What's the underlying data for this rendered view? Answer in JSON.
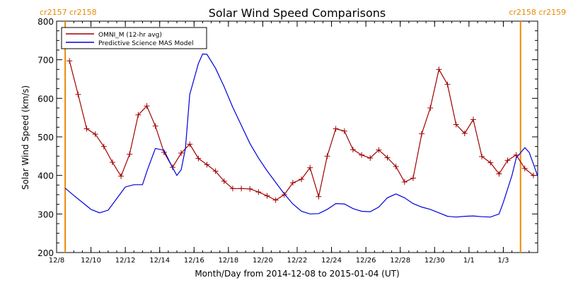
{
  "chart_data": {
    "type": "line",
    "title": "Solar Wind Speed Comparisons",
    "xlabel": "Month/Day from 2014-12-08 to 2015-01-04 (UT)",
    "ylabel": "Solar Wind Speed (km/s)",
    "xlim": [
      "2014-12-08",
      "2015-01-04"
    ],
    "ylim": [
      200,
      800
    ],
    "yticks": [
      200,
      300,
      400,
      500,
      600,
      700,
      800
    ],
    "xticks": [
      {
        "date": "2014-12-08",
        "label": "12/8"
      },
      {
        "date": "2014-12-10",
        "label": "12/10"
      },
      {
        "date": "2014-12-12",
        "label": "12/12"
      },
      {
        "date": "2014-12-14",
        "label": "12/14"
      },
      {
        "date": "2014-12-16",
        "label": "12/16"
      },
      {
        "date": "2014-12-18",
        "label": "12/18"
      },
      {
        "date": "2014-12-20",
        "label": "12/20"
      },
      {
        "date": "2014-12-22",
        "label": "12/22"
      },
      {
        "date": "2014-12-24",
        "label": "12/24"
      },
      {
        "date": "2014-12-26",
        "label": "12/26"
      },
      {
        "date": "2014-12-28",
        "label": "12/28"
      },
      {
        "date": "2014-12-30",
        "label": "12/30"
      },
      {
        "date": "2015-01-01",
        "label": "1/1"
      },
      {
        "date": "2015-01-03",
        "label": "1/3"
      }
    ],
    "legend_position": "top-left",
    "carrington_markers": [
      {
        "date": "2014-12-08 12:00",
        "labels": [
          "cr2157",
          "cr2158"
        ],
        "color": "#e88a00"
      },
      {
        "date": "2015-01-04 00:00",
        "labels": [
          "cr2158",
          "cr2159"
        ],
        "color": "#e88a00"
      }
    ],
    "series": [
      {
        "name": "OMNI_M (12-hr avg)",
        "color": "#a00000",
        "marker": "plus",
        "points": [
          [
            "2014-12-08 18:00",
            697
          ],
          [
            "2014-12-09 06:00",
            610
          ],
          [
            "2014-12-09 18:00",
            521
          ],
          [
            "2014-12-10 06:00",
            507
          ],
          [
            "2014-12-10 18:00",
            475
          ],
          [
            "2014-12-11 06:00",
            434
          ],
          [
            "2014-12-11 18:00",
            398
          ],
          [
            "2014-12-12 06:00",
            455
          ],
          [
            "2014-12-12 18:00",
            557
          ],
          [
            "2014-12-13 06:00",
            580
          ],
          [
            "2014-12-13 18:00",
            528
          ],
          [
            "2014-12-14 06:00",
            460
          ],
          [
            "2014-12-14 18:00",
            421
          ],
          [
            "2014-12-15 06:00",
            458
          ],
          [
            "2014-12-15 18:00",
            481
          ],
          [
            "2014-12-16 06:00",
            444
          ],
          [
            "2014-12-16 18:00",
            428
          ],
          [
            "2014-12-17 06:00",
            411
          ],
          [
            "2014-12-17 18:00",
            385
          ],
          [
            "2014-12-18 06:00",
            366
          ],
          [
            "2014-12-18 18:00",
            366
          ],
          [
            "2014-12-19 06:00",
            365
          ],
          [
            "2014-12-19 18:00",
            357
          ],
          [
            "2014-12-20 06:00",
            347
          ],
          [
            "2014-12-20 18:00",
            336
          ],
          [
            "2014-12-21 06:00",
            350
          ],
          [
            "2014-12-21 18:00",
            381
          ],
          [
            "2014-12-22 06:00",
            390
          ],
          [
            "2014-12-22 18:00",
            420
          ],
          [
            "2014-12-23 06:00",
            345
          ],
          [
            "2014-12-23 18:00",
            450
          ],
          [
            "2014-12-24 06:00",
            521
          ],
          [
            "2014-12-24 18:00",
            515
          ],
          [
            "2014-12-25 06:00",
            467
          ],
          [
            "2014-12-25 18:00",
            453
          ],
          [
            "2014-12-26 06:00",
            445
          ],
          [
            "2014-12-26 18:00",
            466
          ],
          [
            "2014-12-27 06:00",
            446
          ],
          [
            "2014-12-27 18:00",
            423
          ],
          [
            "2014-12-28 06:00",
            383
          ],
          [
            "2014-12-28 18:00",
            393
          ],
          [
            "2014-12-29 06:00",
            508
          ],
          [
            "2014-12-29 18:00",
            575
          ],
          [
            "2014-12-30 06:00",
            675
          ],
          [
            "2014-12-30 18:00",
            636
          ],
          [
            "2014-12-31 06:00",
            532
          ],
          [
            "2014-12-31 18:00",
            509
          ],
          [
            "2015-01-01 06:00",
            545
          ],
          [
            "2015-01-01 18:00",
            449
          ],
          [
            "2015-01-02 06:00",
            433
          ],
          [
            "2015-01-02 18:00",
            404
          ],
          [
            "2015-01-03 06:00",
            439
          ],
          [
            "2015-01-03 18:00",
            453
          ],
          [
            "2015-01-04 06:00",
            418
          ],
          [
            "2015-01-04 18:00",
            400
          ]
        ]
      },
      {
        "name": "Predictive Science MAS Model",
        "color": "#0000dd",
        "marker": "none",
        "points": [
          [
            "2014-12-08 12:00",
            367
          ],
          [
            "2014-12-09 00:00",
            348
          ],
          [
            "2014-12-09 12:00",
            330
          ],
          [
            "2014-12-10 00:00",
            312
          ],
          [
            "2014-12-10 12:00",
            303
          ],
          [
            "2014-12-11 00:00",
            310
          ],
          [
            "2014-12-11 12:00",
            340
          ],
          [
            "2014-12-12 00:00",
            370
          ],
          [
            "2014-12-12 12:00",
            376
          ],
          [
            "2014-12-13 00:00",
            376
          ],
          [
            "2014-12-13 06:00",
            410
          ],
          [
            "2014-12-13 18:00",
            470
          ],
          [
            "2014-12-14 06:00",
            465
          ],
          [
            "2014-12-14 18:00",
            420
          ],
          [
            "2014-12-15 00:00",
            400
          ],
          [
            "2014-12-15 06:00",
            415
          ],
          [
            "2014-12-15 12:00",
            470
          ],
          [
            "2014-12-15 18:00",
            610
          ],
          [
            "2014-12-16 06:00",
            690
          ],
          [
            "2014-12-16 12:00",
            715
          ],
          [
            "2014-12-16 18:00",
            714
          ],
          [
            "2014-12-17 06:00",
            678
          ],
          [
            "2014-12-17 18:00",
            630
          ],
          [
            "2014-12-18 06:00",
            577
          ],
          [
            "2014-12-18 18:00",
            530
          ],
          [
            "2014-12-19 06:00",
            483
          ],
          [
            "2014-12-19 18:00",
            445
          ],
          [
            "2014-12-20 06:00",
            412
          ],
          [
            "2014-12-20 18:00",
            382
          ],
          [
            "2014-12-21 06:00",
            352
          ],
          [
            "2014-12-21 18:00",
            326
          ],
          [
            "2014-12-22 06:00",
            307
          ],
          [
            "2014-12-22 18:00",
            300
          ],
          [
            "2014-12-23 06:00",
            301
          ],
          [
            "2014-12-23 18:00",
            312
          ],
          [
            "2014-12-24 06:00",
            327
          ],
          [
            "2014-12-24 18:00",
            326
          ],
          [
            "2014-12-25 06:00",
            314
          ],
          [
            "2014-12-25 18:00",
            307
          ],
          [
            "2014-12-26 06:00",
            306
          ],
          [
            "2014-12-26 18:00",
            318
          ],
          [
            "2014-12-27 06:00",
            342
          ],
          [
            "2014-12-27 18:00",
            352
          ],
          [
            "2014-12-28 06:00",
            342
          ],
          [
            "2014-12-28 18:00",
            327
          ],
          [
            "2014-12-29 06:00",
            318
          ],
          [
            "2014-12-29 18:00",
            312
          ],
          [
            "2014-12-30 06:00",
            303
          ],
          [
            "2014-12-30 18:00",
            294
          ],
          [
            "2014-12-31 06:00",
            292
          ],
          [
            "2014-12-31 18:00",
            294
          ],
          [
            "2015-01-01 06:00",
            295
          ],
          [
            "2015-01-01 18:00",
            293
          ],
          [
            "2015-01-02 06:00",
            292
          ],
          [
            "2015-01-02 18:00",
            300
          ],
          [
            "2015-01-03 00:00",
            330
          ],
          [
            "2015-01-03 12:00",
            400
          ],
          [
            "2015-01-03 18:00",
            445
          ],
          [
            "2015-01-04 06:00",
            472
          ],
          [
            "2015-01-04 12:00",
            460
          ],
          [
            "2015-01-04 18:00",
            430
          ],
          [
            "2015-01-05 00:00",
            398
          ]
        ]
      }
    ]
  }
}
